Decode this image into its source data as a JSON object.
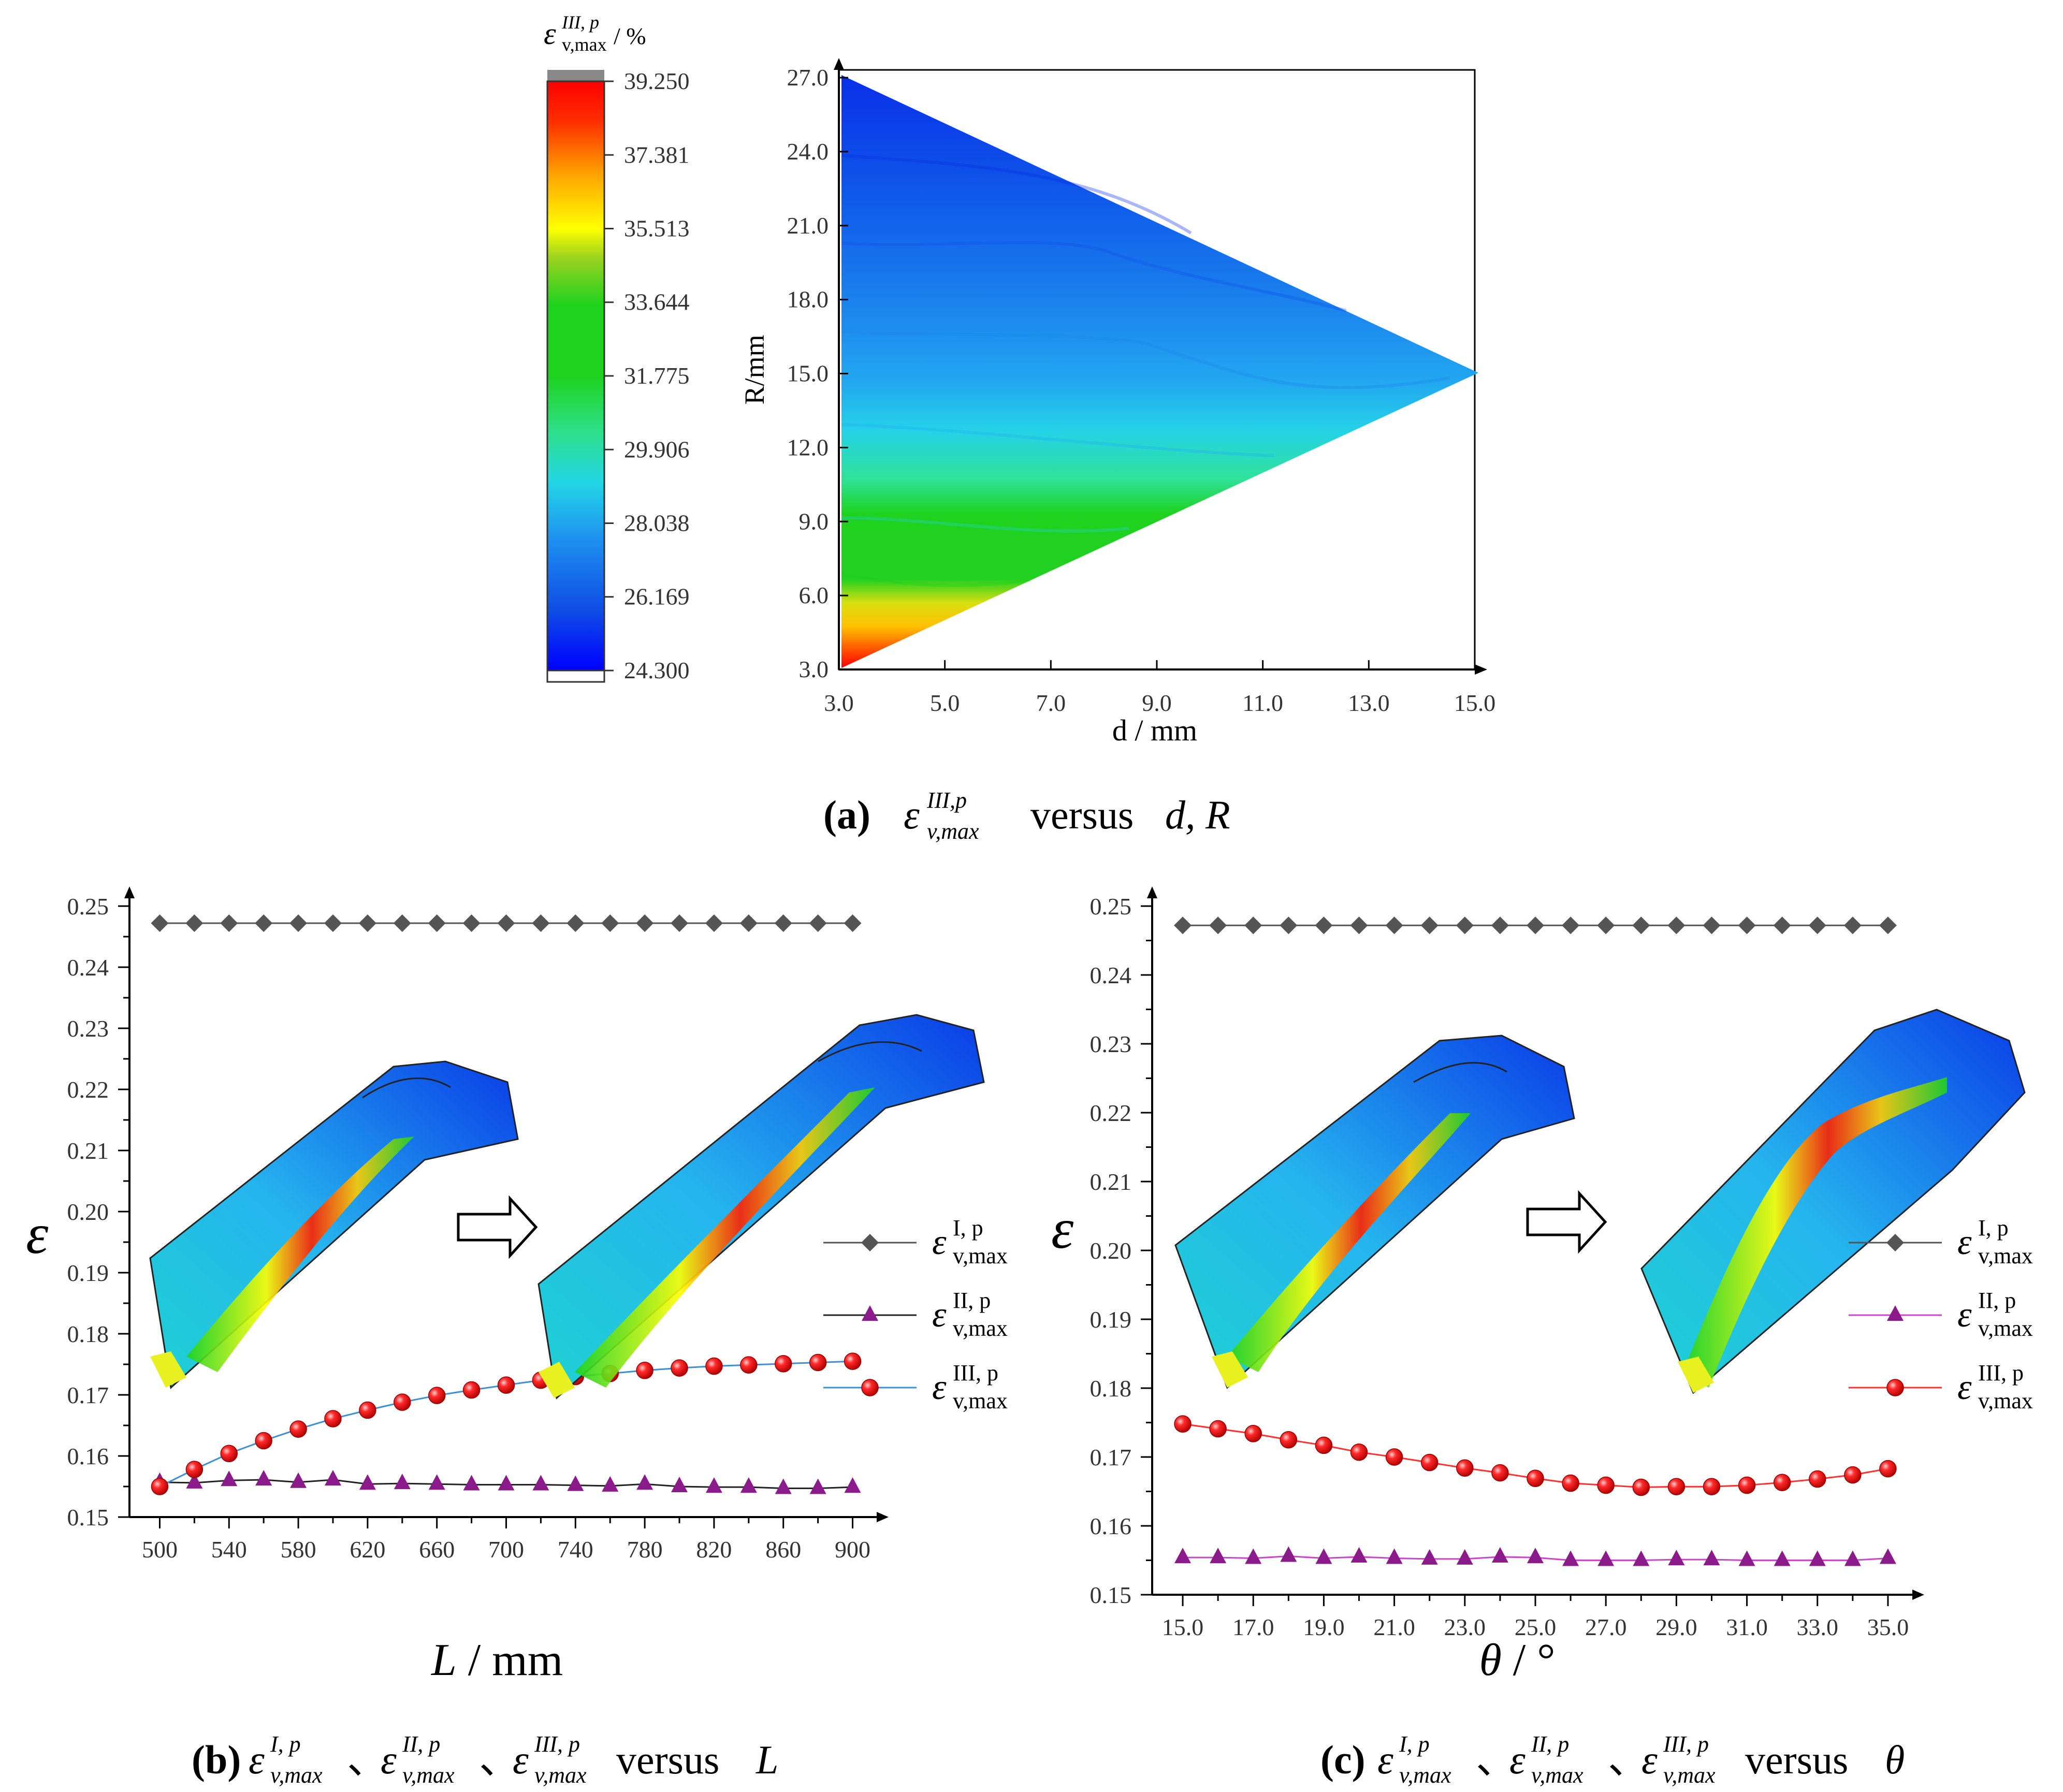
{
  "colors": {
    "axis": "#000000",
    "series_I": "#555555",
    "series_II": "#8B1A8B",
    "series_III_fill": "#ff1a1a",
    "line_b_III": "#3a8fd8",
    "line_c_III": "#ff3030",
    "line_c_II": "#cc44cc"
  },
  "chart_data": [
    {
      "id": "a",
      "type": "heatmap",
      "caption": {
        "label": "(a)",
        "symbol": "ε",
        "sup": "III,p",
        "sub": "v,max",
        "text": "versus",
        "vars": "d, R"
      },
      "xlabel": "d / mm",
      "ylabel": "R/mm",
      "xlim": [
        3,
        15
      ],
      "ylim": [
        3,
        27
      ],
      "xticks": [
        "3.0",
        "5.0",
        "7.0",
        "9.0",
        "11.0",
        "13.0",
        "15.0"
      ],
      "yticks": [
        "3.0",
        "6.0",
        "9.0",
        "12.0",
        "15.0",
        "18.0",
        "21.0",
        "24.0",
        "27.0"
      ],
      "region": {
        "shape": "triangle",
        "vertices": [
          [
            3,
            3
          ],
          [
            3,
            27
          ],
          [
            15,
            15
          ]
        ]
      },
      "colorbar": {
        "title_symbol": "ε",
        "title_sup": "III, p",
        "title_sub": "v,max",
        "title_unit": "/ %",
        "min": 24.3,
        "max": 39.25,
        "ticks": [
          "39.250",
          "37.381",
          "35.513",
          "33.644",
          "31.775",
          "29.906",
          "28.038",
          "26.169",
          "24.300"
        ],
        "colormap": [
          "#0000ff",
          "#0f4ce6",
          "#1e8ff0",
          "#22d6e6",
          "#2ee08f",
          "#1ed21e",
          "#9ad21e",
          "#ffff00",
          "#ffa500",
          "#ff3000",
          "#ff0000"
        ]
      },
      "field": [
        {
          "R": 27,
          "value": 24.8
        },
        {
          "R": 23,
          "value": 25.3
        },
        {
          "R": 19,
          "value": 26.0
        },
        {
          "R": 15,
          "value": 26.8
        },
        {
          "R": 12,
          "value": 28.1
        },
        {
          "R": 10,
          "value": 30.2
        },
        {
          "R": 8,
          "value": 32.5
        },
        {
          "R": 6.5,
          "value": 34.0
        },
        {
          "R": 5,
          "value": 36.0
        },
        {
          "R": 3,
          "value": 39.0
        }
      ]
    },
    {
      "id": "b",
      "type": "line",
      "caption": {
        "label": "(b)",
        "text": "versus",
        "var": "L"
      },
      "xlabel_var": "L",
      "xlabel_unit": " / mm",
      "ylabel": "ε",
      "xlim": [
        490,
        910
      ],
      "ylim": [
        0.15,
        0.25
      ],
      "xticks": [
        "500",
        "540",
        "580",
        "620",
        "660",
        "700",
        "740",
        "780",
        "820",
        "860",
        "900"
      ],
      "yticks": [
        "0.15",
        "0.16",
        "0.17",
        "0.18",
        "0.19",
        "0.20",
        "0.21",
        "0.22",
        "0.23",
        "0.24",
        "0.25"
      ],
      "x": [
        500,
        520,
        540,
        560,
        580,
        600,
        620,
        640,
        660,
        680,
        700,
        720,
        740,
        760,
        780,
        800,
        820,
        840,
        860,
        880,
        900
      ],
      "series": [
        {
          "name": "I",
          "sup": "I, p",
          "sub": "v,max",
          "marker": "diamond",
          "values": [
            0.2472,
            0.2472,
            0.2472,
            0.2472,
            0.2472,
            0.2472,
            0.2472,
            0.2472,
            0.2472,
            0.2472,
            0.2472,
            0.2472,
            0.2472,
            0.2472,
            0.2472,
            0.2472,
            0.2472,
            0.2472,
            0.2472,
            0.2472,
            0.2472
          ]
        },
        {
          "name": "II",
          "sup": "II, p",
          "sub": "v,max",
          "marker": "triangle",
          "values": [
            0.1557,
            0.1556,
            0.156,
            0.1561,
            0.1557,
            0.1561,
            0.1554,
            0.1555,
            0.1554,
            0.1553,
            0.1553,
            0.1553,
            0.1552,
            0.1551,
            0.1554,
            0.155,
            0.1549,
            0.1549,
            0.1547,
            0.1547,
            0.1549
          ]
        },
        {
          "name": "III",
          "sup": "III, p",
          "sub": "v,max",
          "marker": "circle",
          "values": [
            0.155,
            0.1578,
            0.1604,
            0.1625,
            0.1644,
            0.1661,
            0.1675,
            0.1688,
            0.1699,
            0.1708,
            0.1716,
            0.1724,
            0.173,
            0.1735,
            0.174,
            0.1744,
            0.1747,
            0.1749,
            0.1751,
            0.1753,
            0.1755
          ]
        }
      ]
    },
    {
      "id": "c",
      "type": "line",
      "caption": {
        "label": "(c)",
        "text": "versus",
        "var": "θ"
      },
      "xlabel_var": "θ",
      "xlabel_unit": " / °",
      "ylabel": "ε",
      "xlim": [
        14.5,
        35.5
      ],
      "ylim": [
        0.15,
        0.25
      ],
      "xticks": [
        "15.0",
        "17.0",
        "19.0",
        "21.0",
        "23.0",
        "25.0",
        "27.0",
        "29.0",
        "31.0",
        "33.0",
        "35.0"
      ],
      "yticks": [
        "0.15",
        "0.16",
        "0.17",
        "0.18",
        "0.19",
        "0.20",
        "0.21",
        "0.22",
        "0.23",
        "0.24",
        "0.25"
      ],
      "x": [
        15,
        16,
        17,
        18,
        19,
        20,
        21,
        22,
        23,
        24,
        25,
        26,
        27,
        28,
        29,
        30,
        31,
        32,
        33,
        34,
        35
      ],
      "series": [
        {
          "name": "I",
          "sup": "I, p",
          "sub": "v,max",
          "marker": "diamond",
          "values": [
            0.2472,
            0.2472,
            0.2472,
            0.2472,
            0.2472,
            0.2472,
            0.2472,
            0.2472,
            0.2472,
            0.2472,
            0.2472,
            0.2472,
            0.2472,
            0.2472,
            0.2472,
            0.2472,
            0.2472,
            0.2472,
            0.2472,
            0.2472,
            0.2472
          ]
        },
        {
          "name": "II",
          "sup": "II, p",
          "sub": "v,max",
          "marker": "triangle",
          "values": [
            0.1554,
            0.1554,
            0.1553,
            0.1556,
            0.1553,
            0.1555,
            0.1553,
            0.1552,
            0.1552,
            0.1555,
            0.1554,
            0.155,
            0.155,
            0.155,
            0.1551,
            0.1551,
            0.155,
            0.155,
            0.155,
            0.155,
            0.1553
          ]
        },
        {
          "name": "III",
          "sup": "III, p",
          "sub": "v,max",
          "marker": "circle",
          "values": [
            0.1748,
            0.1741,
            0.1734,
            0.1725,
            0.1717,
            0.1707,
            0.17,
            0.1692,
            0.1684,
            0.1677,
            0.1669,
            0.1662,
            0.1659,
            0.1656,
            0.1657,
            0.1657,
            0.1659,
            0.1663,
            0.1668,
            0.1674,
            0.1683
          ]
        }
      ]
    }
  ]
}
